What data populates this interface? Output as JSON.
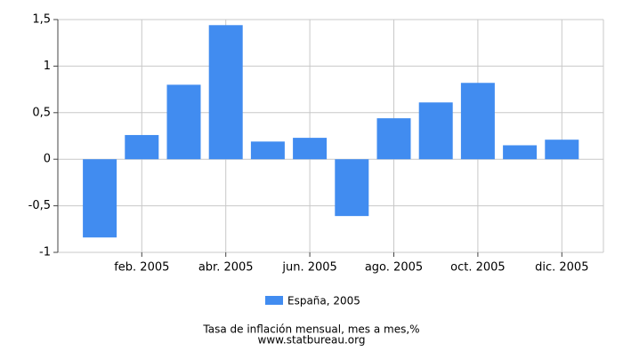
{
  "chart_data": {
    "type": "bar",
    "title": "Tasa de inflación mensual, mes a mes,%",
    "source": "www.statbureau.org",
    "categories": [
      null,
      "feb. 2005",
      null,
      "abr. 2005",
      null,
      "jun. 2005",
      null,
      "ago. 2005",
      null,
      "oct. 2005",
      null,
      "dic. 2005"
    ],
    "series": [
      {
        "name": "España, 2005",
        "color": "#418cf0",
        "values": [
          -0.84,
          0.26,
          0.8,
          1.44,
          0.19,
          0.23,
          -0.61,
          0.44,
          0.61,
          0.82,
          0.15,
          0.21
        ]
      }
    ],
    "ylim": [
      -1,
      1.5
    ],
    "yticks": [
      -1,
      {
        "value": -0.5,
        "label": "-0,5"
      },
      0,
      {
        "value": 0.5,
        "label": "0,5"
      },
      1,
      {
        "value": 1.5,
        "label": "1,5"
      }
    ],
    "grid": true
  }
}
